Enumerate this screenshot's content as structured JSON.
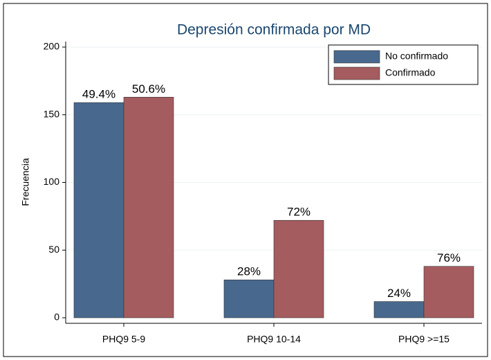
{
  "chart_data": {
    "type": "bar",
    "title": "Depresión confirmada por MD",
    "y_label": "Frecuencia",
    "categories": [
      "PHQ9 5-9",
      "PHQ9 10-14",
      "PHQ9 >=15"
    ],
    "series": [
      {
        "name": "No confirmado",
        "color": "#48698d",
        "values": [
          159,
          28,
          12
        ],
        "bar_labels": [
          "49.4%",
          "28%",
          "24%"
        ]
      },
      {
        "name": "Confirmado",
        "color": "#a55c5f",
        "values": [
          163,
          72,
          38
        ],
        "bar_labels": [
          "50.6%",
          "72%",
          "76%"
        ]
      }
    ],
    "ylim": [
      0,
      200
    ],
    "yticks": [
      0,
      50,
      100,
      150,
      200
    ],
    "grid": true,
    "legend": "top-right"
  }
}
